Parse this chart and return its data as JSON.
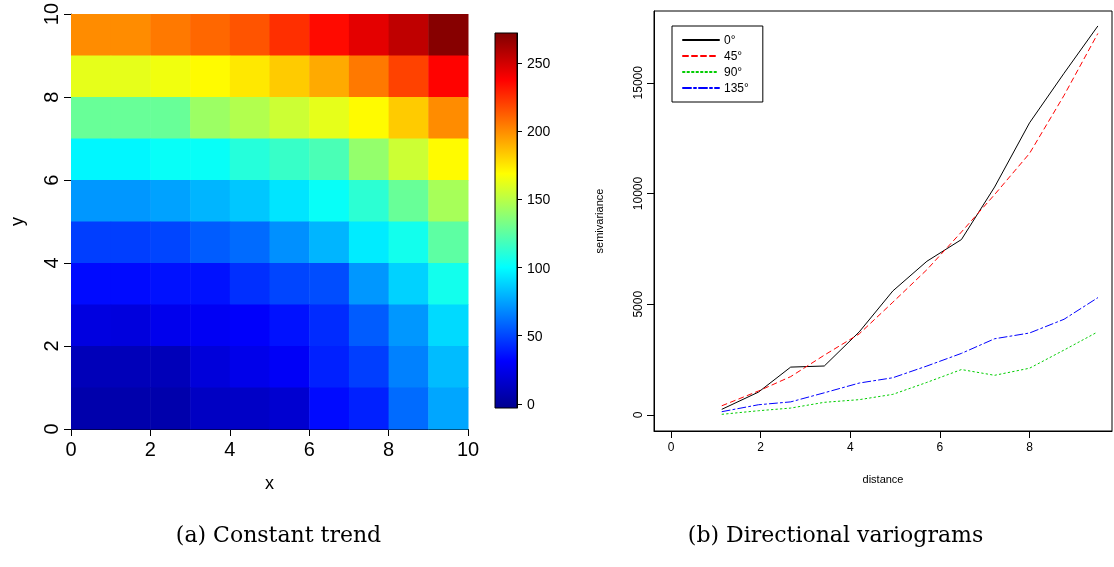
{
  "chart_data": [
    {
      "type": "heatmap",
      "title": "(a) Constant trend",
      "xlabel": "x",
      "ylabel": "y",
      "x": [
        0.5,
        1.5,
        2.5,
        3.5,
        4.5,
        5.5,
        6.5,
        7.5,
        8.5,
        9.5
      ],
      "y": [
        9.5,
        8.5,
        7.5,
        6.5,
        5.5,
        4.5,
        3.5,
        2.5,
        1.5,
        0.5
      ],
      "cells": [
        [
          200,
          200,
          205,
          210,
          215,
          225,
          235,
          245,
          255,
          270
        ],
        [
          162,
          162,
          165,
          170,
          175,
          183,
          192,
          205,
          220,
          237
        ],
        [
          128,
          128,
          128,
          142,
          148,
          155,
          162,
          170,
          183,
          200
        ],
        [
          98,
          98,
          102,
          102,
          110,
          115,
          120,
          140,
          155,
          170
        ],
        [
          72,
          72,
          75,
          80,
          85,
          93,
          102,
          112,
          128,
          145
        ],
        [
          48,
          48,
          50,
          56,
          60,
          70,
          80,
          95,
          105,
          125
        ],
        [
          34,
          34,
          36,
          36,
          44,
          50,
          52,
          72,
          88,
          105
        ],
        [
          22,
          21,
          26,
          28,
          30,
          36,
          43,
          56,
          72,
          90
        ],
        [
          10,
          10,
          10,
          20,
          25,
          29,
          40,
          48,
          66,
          82
        ],
        [
          6,
          6,
          6,
          13,
          14,
          17,
          34,
          40,
          60,
          76
        ]
      ],
      "xlim": [
        0,
        10
      ],
      "xticks": [
        0,
        2,
        4,
        6,
        8,
        10
      ],
      "ylim": [
        0,
        10
      ],
      "yticks": [
        0,
        2,
        4,
        6,
        8,
        10
      ],
      "clim": [
        -3,
        272
      ],
      "cticks": [
        0,
        50,
        100,
        150,
        200,
        250
      ],
      "grid": false
    },
    {
      "type": "line",
      "title": "(b) Directional variograms",
      "xlabel": "distance",
      "ylabel": "semivariance",
      "x": [
        1.14,
        1.95,
        2.67,
        3.42,
        4.2,
        4.95,
        5.71,
        6.48,
        7.22,
        8.0,
        8.77,
        9.52
      ],
      "series": [
        {
          "name": "0°",
          "color": "#000000",
          "line_style": "solid",
          "values": [
            260,
            1030,
            2160,
            2210,
            3750,
            5600,
            6940,
            7920,
            10290,
            13190,
            15430,
            17550
          ]
        },
        {
          "name": "45°",
          "color": "#ff0000",
          "line_style": "dashed",
          "values": [
            420,
            1080,
            1730,
            2700,
            3660,
            5090,
            6560,
            8260,
            9950,
            11810,
            14430,
            17210
          ]
        },
        {
          "name": "90°",
          "color": "#00cd00",
          "line_style": "dotted",
          "values": [
            30,
            190,
            310,
            570,
            690,
            930,
            1470,
            2050,
            1790,
            2110,
            2930,
            3750
          ]
        },
        {
          "name": "135°",
          "color": "#0000ff",
          "line_style": "dashdot",
          "values": [
            150,
            460,
            590,
            1000,
            1440,
            1680,
            2210,
            2780,
            3440,
            3700,
            4320,
            5290
          ]
        }
      ],
      "xlim": [
        -0.38,
        9.84
      ],
      "xticks": [
        0,
        2,
        4,
        6,
        8
      ],
      "ylim": [
        -725,
        18240
      ],
      "yticks": [
        0,
        5000,
        10000,
        15000
      ],
      "grid": false,
      "legend": "top left",
      "marker": "none"
    }
  ]
}
